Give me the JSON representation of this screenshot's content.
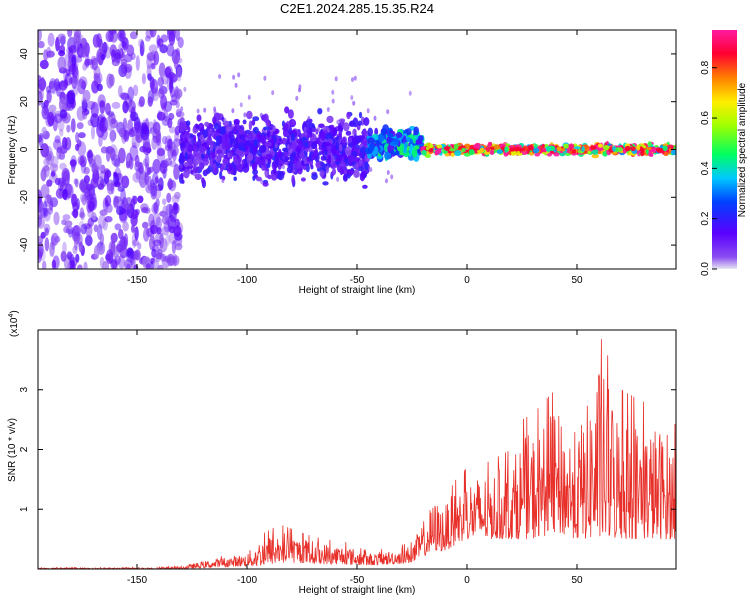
{
  "title": "C2E1.2024.285.15.35.R24",
  "colors": {
    "snr_line": "#e8302a",
    "frame": "#000000"
  },
  "chart_data": [
    {
      "type": "heatmap",
      "xlabel": "Height of straight line (km)",
      "ylabel": "Frequency (Hz)",
      "xlim": [
        -195,
        95
      ],
      "ylim": [
        -50,
        50
      ],
      "x_ticks": [
        -150,
        -100,
        -50,
        0,
        50
      ],
      "y_ticks": [
        -40,
        -20,
        0,
        20,
        40
      ],
      "colorbar": {
        "label": "Normalized spectral amplitude",
        "range": [
          0,
          0.95
        ],
        "ticks": [
          0.0,
          0.2,
          0.4,
          0.6,
          0.8
        ],
        "colormap": "rainbow (purple → blue → cyan → green → yellow → orange → red → magenta)"
      },
      "regions": [
        {
          "x_range": [
            -195,
            -130
          ],
          "freq_spread_hz": 50,
          "normalized_amplitude": 0.05,
          "note": "diffuse light-purple noise over full band"
        },
        {
          "x_range": [
            -130,
            -45
          ],
          "freq_spread_hz": 18,
          "normalized_amplitude": 0.15,
          "note": "dense purple/blue band with cyan spots"
        },
        {
          "x_range": [
            -45,
            -20
          ],
          "freq_spread_hz": 8,
          "normalized_amplitude": 0.35,
          "note": "green/cyan band near 2–5 Hz"
        },
        {
          "x_range": [
            -20,
            95
          ],
          "freq_spread_hz": 3,
          "normalized_amplitude": 0.8,
          "note": "narrow line at ~0 Hz with red/orange peak"
        }
      ]
    },
    {
      "type": "line",
      "xlabel": "Height of straight line (km)",
      "ylabel": "SNR (10 * v/v)",
      "y_multiplier": "(x10",
      "y_multiplier_exp": "4",
      "y_multiplier_close": ")",
      "xlim": [
        -195,
        95
      ],
      "ylim": [
        0,
        4.0
      ],
      "x_ticks": [
        -150,
        -100,
        -50,
        0,
        50
      ],
      "y_ticks": [
        1,
        2,
        3
      ],
      "envelope": {
        "x": [
          -195,
          -140,
          -130,
          -120,
          -100,
          -95,
          -85,
          -75,
          -65,
          -55,
          -45,
          -35,
          -25,
          -20,
          -15,
          -10,
          -5,
          0,
          10,
          20,
          25,
          30,
          40,
          50,
          55,
          60,
          70,
          80,
          90,
          95
        ],
        "y_peak": [
          0.02,
          0.03,
          0.05,
          0.15,
          0.3,
          0.55,
          0.75,
          0.6,
          0.5,
          0.45,
          0.3,
          0.35,
          0.45,
          0.9,
          1.3,
          1.2,
          1.5,
          1.7,
          1.8,
          2.0,
          2.5,
          2.6,
          3.0,
          2.6,
          3.2,
          3.95,
          3.0,
          2.8,
          2.7,
          2.4
        ],
        "y_base": [
          0.0,
          0.0,
          0.0,
          0.02,
          0.05,
          0.05,
          0.1,
          0.1,
          0.08,
          0.08,
          0.06,
          0.08,
          0.1,
          0.2,
          0.3,
          0.3,
          0.4,
          0.5,
          0.5,
          0.5,
          0.5,
          0.5,
          0.6,
          0.5,
          0.5,
          0.5,
          0.5,
          0.5,
          0.5,
          0.5
        ]
      }
    }
  ]
}
